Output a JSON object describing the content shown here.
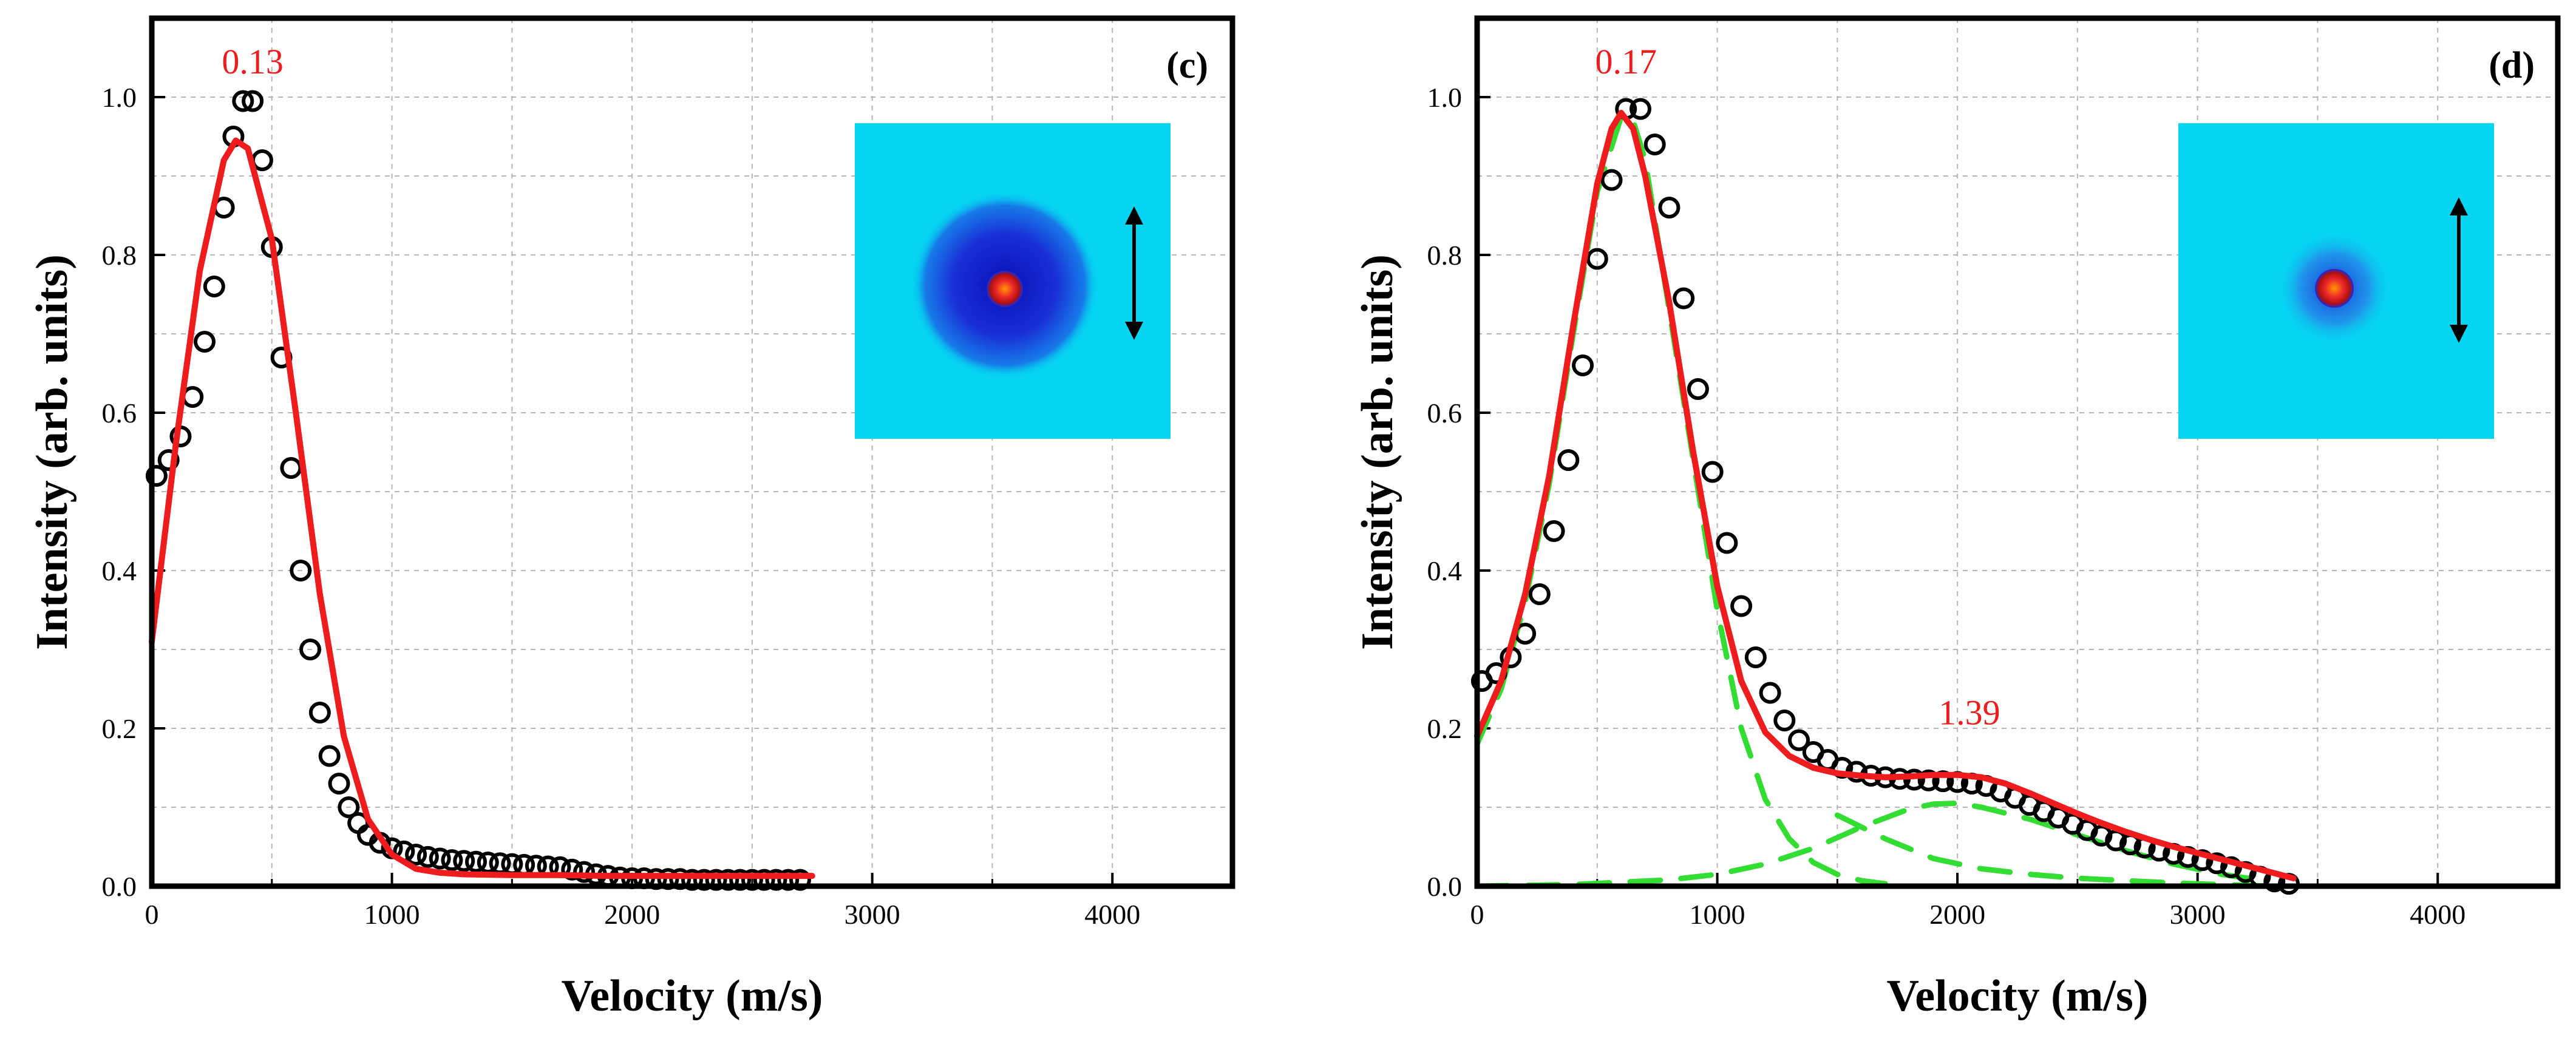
{
  "colors": {
    "fit": "#ee1c1c",
    "component": "#33dd33",
    "marker": "#000000",
    "grid": "#b5b5b5",
    "image_bg": "#06d5f2",
    "image_halo": "#1a2ad9",
    "image_core": "#ee2a2a",
    "peak_label": "#ee1c1c"
  },
  "chart_data": [
    {
      "type": "scatter",
      "panel_label": "(c)",
      "xlabel": "Velocity (m/s)",
      "ylabel": "Intensity (arb. units)",
      "xlim": [
        0,
        4500
      ],
      "ylim": [
        0,
        1.1
      ],
      "grid": true,
      "x_ticks": [
        "0",
        "1000",
        "2000",
        "3000",
        "4000"
      ],
      "x_tick_values": [
        0,
        1000,
        2000,
        3000,
        4000
      ],
      "y_ticks": [
        "0.0",
        "0.2",
        "0.4",
        "0.6",
        "0.8",
        "1.0"
      ],
      "y_tick_values": [
        0,
        0.2,
        0.4,
        0.6,
        0.8,
        1.0
      ],
      "peak_annotations": [
        {
          "text": "0.13",
          "x": 420,
          "y": 1.03
        }
      ],
      "inset": {
        "halo": "large",
        "location": "upper-right"
      },
      "series": [
        {
          "name": "data",
          "style": "open-circle",
          "x": [
            20,
            70,
            120,
            170,
            220,
            260,
            300,
            340,
            380,
            420,
            460,
            500,
            540,
            580,
            620,
            660,
            700,
            740,
            780,
            820,
            860,
            900,
            950,
            1000,
            1050,
            1100,
            1150,
            1200,
            1250,
            1300,
            1350,
            1400,
            1450,
            1500,
            1550,
            1600,
            1650,
            1700,
            1750,
            1800,
            1850,
            1900,
            1950,
            2000,
            2050,
            2100,
            2150,
            2200,
            2250,
            2300,
            2350,
            2400,
            2450,
            2500,
            2550,
            2600,
            2650,
            2700
          ],
          "y": [
            0.52,
            0.54,
            0.57,
            0.62,
            0.69,
            0.76,
            0.86,
            0.95,
            0.995,
            0.995,
            0.92,
            0.81,
            0.67,
            0.53,
            0.4,
            0.3,
            0.22,
            0.165,
            0.13,
            0.1,
            0.08,
            0.065,
            0.055,
            0.048,
            0.044,
            0.04,
            0.037,
            0.035,
            0.033,
            0.032,
            0.031,
            0.03,
            0.029,
            0.028,
            0.027,
            0.026,
            0.025,
            0.024,
            0.021,
            0.018,
            0.015,
            0.013,
            0.011,
            0.01,
            0.01,
            0.009,
            0.009,
            0.009,
            0.008,
            0.008,
            0.008,
            0.008,
            0.008,
            0.008,
            0.008,
            0.008,
            0.008,
            0.008
          ]
        },
        {
          "name": "fit",
          "style": "solid-red",
          "x": [
            0,
            100,
            200,
            300,
            350,
            400,
            500,
            600,
            700,
            800,
            900,
            1000,
            1100,
            1200,
            1300,
            1500,
            1700,
            1900,
            2100,
            2300,
            2500,
            2750
          ],
          "y": [
            0.31,
            0.56,
            0.78,
            0.92,
            0.945,
            0.935,
            0.82,
            0.6,
            0.37,
            0.19,
            0.085,
            0.04,
            0.022,
            0.017,
            0.015,
            0.014,
            0.014,
            0.013,
            0.013,
            0.013,
            0.013,
            0.013
          ]
        }
      ]
    },
    {
      "type": "scatter",
      "panel_label": "(d)",
      "xlabel": "Velocity (m/s)",
      "ylabel": "Intensity (arb. units)",
      "xlim": [
        0,
        4500
      ],
      "ylim": [
        0,
        1.1
      ],
      "grid": true,
      "x_ticks": [
        "0",
        "1000",
        "2000",
        "3000",
        "4000"
      ],
      "x_tick_values": [
        0,
        1000,
        2000,
        3000,
        4000
      ],
      "y_ticks": [
        "0.0",
        "0.2",
        "0.4",
        "0.6",
        "0.8",
        "1.0"
      ],
      "y_tick_values": [
        0,
        0.2,
        0.4,
        0.6,
        0.8,
        1.0
      ],
      "peak_annotations": [
        {
          "text": "0.17",
          "x": 620,
          "y": 1.03
        },
        {
          "text": "1.39",
          "x": 2050,
          "y": 0.205
        }
      ],
      "inset": {
        "halo": "small",
        "location": "upper-right"
      },
      "series": [
        {
          "name": "data",
          "style": "open-circle",
          "x": [
            20,
            80,
            140,
            200,
            260,
            320,
            380,
            440,
            500,
            560,
            620,
            680,
            740,
            800,
            860,
            920,
            980,
            1040,
            1100,
            1160,
            1220,
            1280,
            1340,
            1400,
            1460,
            1520,
            1580,
            1640,
            1700,
            1760,
            1820,
            1880,
            1940,
            2000,
            2060,
            2120,
            2180,
            2240,
            2300,
            2360,
            2420,
            2480,
            2540,
            2600,
            2660,
            2720,
            2780,
            2840,
            2900,
            2960,
            3020,
            3080,
            3140,
            3200,
            3260,
            3320,
            3380
          ],
          "y": [
            0.26,
            0.27,
            0.29,
            0.32,
            0.37,
            0.45,
            0.54,
            0.66,
            0.795,
            0.895,
            0.985,
            0.985,
            0.94,
            0.86,
            0.745,
            0.63,
            0.525,
            0.435,
            0.355,
            0.29,
            0.245,
            0.21,
            0.185,
            0.17,
            0.16,
            0.15,
            0.145,
            0.14,
            0.138,
            0.136,
            0.135,
            0.134,
            0.133,
            0.132,
            0.13,
            0.127,
            0.12,
            0.112,
            0.103,
            0.095,
            0.087,
            0.079,
            0.071,
            0.064,
            0.058,
            0.053,
            0.049,
            0.045,
            0.041,
            0.037,
            0.033,
            0.029,
            0.024,
            0.018,
            0.012,
            0.006,
            0.003
          ]
        },
        {
          "name": "fit",
          "style": "solid-red",
          "x": [
            0,
            100,
            200,
            300,
            400,
            500,
            560,
            600,
            650,
            700,
            800,
            900,
            1000,
            1100,
            1200,
            1300,
            1400,
            1500,
            1600,
            1700,
            1800,
            1900,
            2000,
            2100,
            2200,
            2300,
            2400,
            2500,
            2600,
            2700,
            2800,
            2900,
            3000,
            3100,
            3200,
            3300,
            3400
          ],
          "y": [
            0.19,
            0.26,
            0.37,
            0.52,
            0.71,
            0.89,
            0.96,
            0.98,
            0.96,
            0.9,
            0.74,
            0.55,
            0.38,
            0.26,
            0.195,
            0.165,
            0.15,
            0.143,
            0.14,
            0.138,
            0.139,
            0.141,
            0.141,
            0.138,
            0.13,
            0.118,
            0.105,
            0.092,
            0.08,
            0.069,
            0.059,
            0.05,
            0.042,
            0.034,
            0.026,
            0.018,
            0.01
          ]
        },
        {
          "name": "component-fast",
          "style": "dashed-green",
          "x": [
            0,
            100,
            200,
            300,
            400,
            500,
            600,
            650,
            700,
            800,
            900,
            1000,
            1100,
            1200,
            1300,
            1400,
            1500,
            1600,
            1700
          ],
          "y": [
            0.18,
            0.25,
            0.36,
            0.51,
            0.7,
            0.88,
            0.975,
            0.97,
            0.92,
            0.73,
            0.54,
            0.35,
            0.2,
            0.11,
            0.06,
            0.03,
            0.015,
            0.007,
            0.003
          ]
        },
        {
          "name": "component-slow",
          "style": "dashed-green",
          "x": [
            0,
            400,
            800,
            1000,
            1200,
            1400,
            1600,
            1800,
            1900,
            2000,
            2100,
            2300,
            2500,
            2700,
            2900,
            3100,
            3300
          ],
          "y": [
            0.0,
            0.002,
            0.008,
            0.015,
            0.028,
            0.048,
            0.075,
            0.098,
            0.104,
            0.105,
            0.1,
            0.085,
            0.065,
            0.045,
            0.028,
            0.015,
            0.006
          ]
        },
        {
          "name": "component-dip",
          "style": "dashed-green",
          "x": [
            1500,
            1700,
            1900,
            2100,
            2300,
            2500,
            2700,
            2900,
            3100,
            3300
          ],
          "y": [
            0.09,
            0.06,
            0.035,
            0.022,
            0.015,
            0.01,
            0.007,
            0.004,
            0.002,
            0.0
          ]
        }
      ]
    }
  ]
}
